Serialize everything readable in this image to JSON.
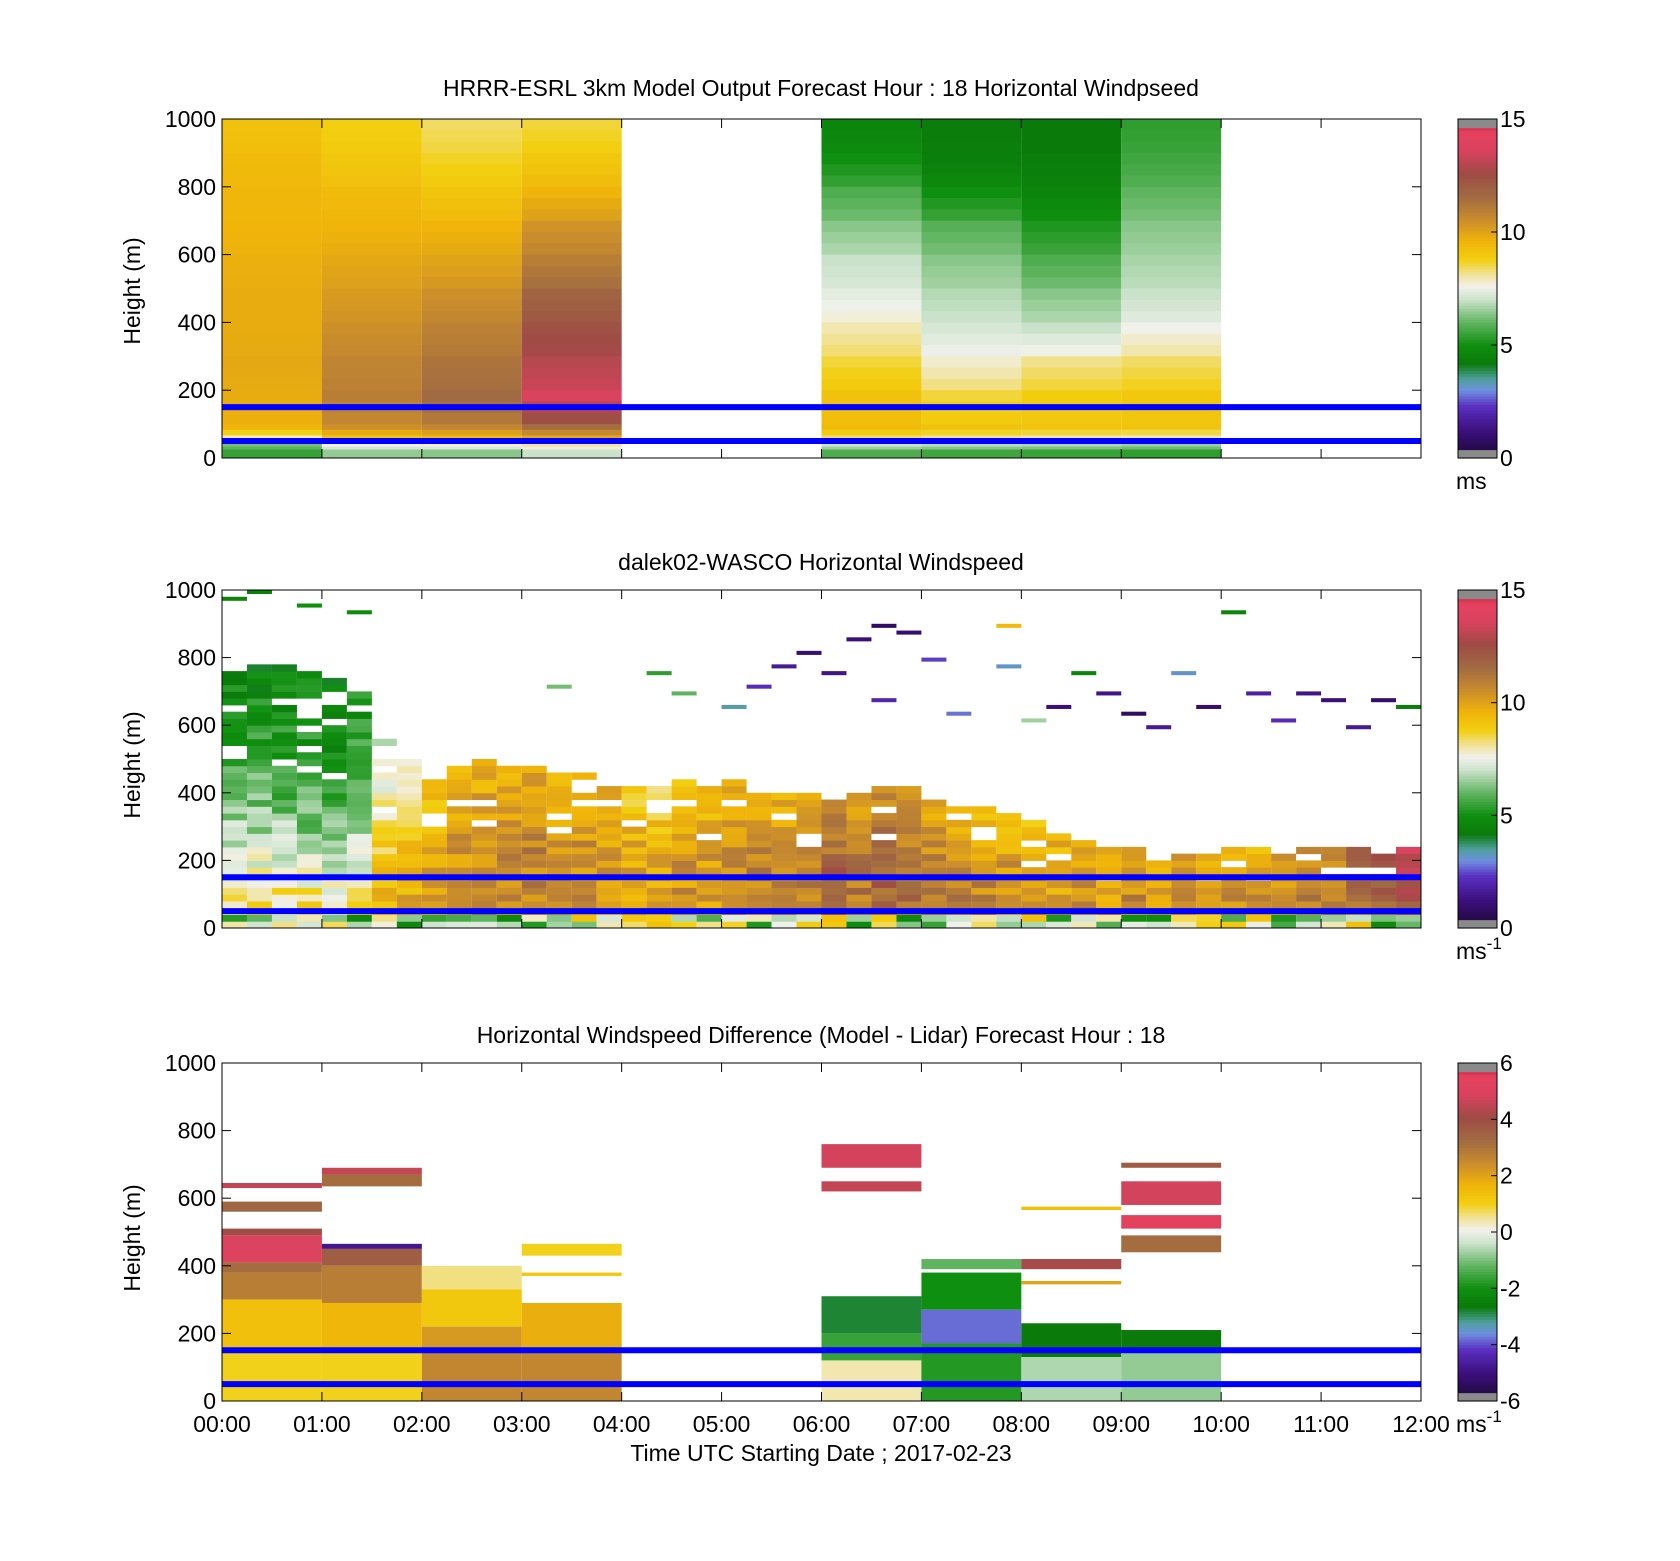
{
  "colors": {
    "overlay_line": "#0000ff",
    "background": "#ffffff",
    "axis": "#000000"
  },
  "shared_x": {
    "label": "Time UTC  Starting Date ; 2017-02-23",
    "ticks": [
      "00:00",
      "01:00",
      "02:00",
      "03:00",
      "04:00",
      "05:00",
      "06:00",
      "07:00",
      "08:00",
      "09:00",
      "10:00",
      "11:00",
      "12:00"
    ],
    "range_hours": [
      0,
      12
    ]
  },
  "chart_data": [
    {
      "type": "heatmap",
      "title": "HRRR-ESRL 3km Model Output   Forecast Hour : 18 Horizontal Windpseed",
      "ylabel": "Height (m)",
      "ylim": [
        0,
        1000
      ],
      "yticks": [
        "0",
        "200",
        "400",
        "600",
        "800",
        "1000"
      ],
      "colorbar": {
        "min": 0,
        "max": 15,
        "ticks": [
          "0",
          "5",
          "10",
          "15"
        ],
        "unit": "ms",
        "unit_sup": ""
      },
      "overlay_lines_m": [
        150,
        50
      ],
      "rows_m": [
        1000,
        900,
        800,
        700,
        600,
        500,
        400,
        300,
        200,
        100,
        50,
        25
      ],
      "columns": [
        {
          "start_h": 0,
          "end_h": 1,
          "values": [
            9.2,
            9.4,
            9.5,
            9.6,
            9.7,
            9.8,
            9.8,
            9.9,
            9.8,
            9.6,
            6.5,
            5.5
          ]
        },
        {
          "start_h": 1,
          "end_h": 2,
          "values": [
            8.8,
            9.0,
            9.4,
            9.6,
            9.9,
            10.2,
            10.5,
            10.8,
            11.0,
            10.5,
            8.0,
            6.5
          ]
        },
        {
          "start_h": 2,
          "end_h": 3,
          "values": [
            8.4,
            8.7,
            9.1,
            9.6,
            10.0,
            10.5,
            10.9,
            11.3,
            11.6,
            10.8,
            8.2,
            6.4
          ]
        },
        {
          "start_h": 3,
          "end_h": 4,
          "values": [
            8.6,
            9.0,
            9.6,
            10.4,
            11.0,
            11.8,
            12.4,
            13.0,
            13.6,
            11.5,
            8.5,
            7.0
          ]
        },
        {
          "start_h": 6,
          "end_h": 7,
          "values": [
            4.6,
            5.0,
            5.8,
            6.4,
            7.0,
            7.4,
            8.0,
            8.6,
            9.2,
            9.4,
            7.5,
            5.8
          ]
        },
        {
          "start_h": 7,
          "end_h": 8,
          "values": [
            4.3,
            4.4,
            5.0,
            5.9,
            6.4,
            6.8,
            7.2,
            7.8,
            8.6,
            9.2,
            7.3,
            5.6
          ]
        },
        {
          "start_h": 8,
          "end_h": 9,
          "values": [
            4.2,
            4.3,
            4.6,
            5.2,
            5.8,
            6.4,
            7.0,
            8.2,
            8.9,
            9.1,
            7.2,
            5.5
          ]
        },
        {
          "start_h": 9,
          "end_h": 10,
          "values": [
            5.4,
            5.6,
            6.0,
            6.4,
            6.7,
            7.0,
            7.6,
            8.4,
            9.0,
            9.1,
            7.0,
            5.4
          ]
        }
      ]
    },
    {
      "type": "heatmap",
      "title": "dalek02-WASCO  Horizontal Windspeed",
      "ylabel": "Height (m)",
      "ylim": [
        0,
        1000
      ],
      "yticks": [
        "0",
        "200",
        "400",
        "600",
        "800",
        "1000"
      ],
      "colorbar": {
        "min": 0,
        "max": 15,
        "ticks": [
          "0",
          "5",
          "10",
          "15"
        ],
        "unit": "ms",
        "unit_sup": "-1"
      },
      "overlay_lines_m": [
        150,
        50
      ],
      "row_step_m": 20,
      "column_step_h": 0.25,
      "profiles": [
        {
          "start_h": 0.0,
          "top_m": 820,
          "low": 8.6,
          "mid": 6.0,
          "top": 4.5
        },
        {
          "start_h": 0.25,
          "top_m": 800,
          "low": 8.8,
          "mid": 6.2,
          "top": 4.6
        },
        {
          "start_h": 0.5,
          "top_m": 780,
          "low": 9.0,
          "mid": 6.0,
          "top": 4.8
        },
        {
          "start_h": 0.75,
          "top_m": 760,
          "low": 9.2,
          "mid": 5.8,
          "top": 5.0
        },
        {
          "start_h": 1.0,
          "top_m": 740,
          "low": 9.0,
          "mid": 5.6,
          "top": 4.8
        },
        {
          "start_h": 1.25,
          "top_m": 700,
          "low": 9.2,
          "mid": 6.4,
          "top": 5.2
        },
        {
          "start_h": 1.5,
          "top_m": 560,
          "low": 9.6,
          "mid": 8.6,
          "top": 7.0
        },
        {
          "start_h": 1.75,
          "top_m": 500,
          "low": 9.8,
          "mid": 9.4,
          "top": 8.0
        },
        {
          "start_h": 2.0,
          "top_m": 460,
          "low": 10.2,
          "mid": 10.0,
          "top": 9.2
        },
        {
          "start_h": 2.25,
          "top_m": 480,
          "low": 10.6,
          "mid": 10.4,
          "top": 9.6
        },
        {
          "start_h": 2.5,
          "top_m": 500,
          "low": 10.8,
          "mid": 10.6,
          "top": 9.8
        },
        {
          "start_h": 2.75,
          "top_m": 480,
          "low": 10.6,
          "mid": 10.6,
          "top": 9.8
        },
        {
          "start_h": 3.0,
          "top_m": 480,
          "low": 10.8,
          "mid": 10.8,
          "top": 10.0
        },
        {
          "start_h": 3.25,
          "top_m": 470,
          "low": 10.8,
          "mid": 10.6,
          "top": 9.4
        },
        {
          "start_h": 3.5,
          "top_m": 460,
          "low": 10.6,
          "mid": 10.6,
          "top": 9.6
        },
        {
          "start_h": 3.75,
          "top_m": 440,
          "low": 10.4,
          "mid": 10.4,
          "top": 9.8
        },
        {
          "start_h": 4.0,
          "top_m": 440,
          "low": 10.2,
          "mid": 10.0,
          "top": 9.0
        },
        {
          "start_h": 4.25,
          "top_m": 430,
          "low": 10.0,
          "mid": 10.0,
          "top": 8.6
        },
        {
          "start_h": 4.5,
          "top_m": 440,
          "low": 10.4,
          "mid": 10.4,
          "top": 9.6
        },
        {
          "start_h": 4.75,
          "top_m": 420,
          "low": 10.2,
          "mid": 10.2,
          "top": 9.4
        },
        {
          "start_h": 5.0,
          "top_m": 440,
          "low": 10.6,
          "mid": 10.6,
          "top": 9.6
        },
        {
          "start_h": 5.25,
          "top_m": 420,
          "low": 10.8,
          "mid": 11.0,
          "top": 10.0
        },
        {
          "start_h": 5.5,
          "top_m": 400,
          "low": 10.6,
          "mid": 10.8,
          "top": 9.8
        },
        {
          "start_h": 5.75,
          "top_m": 400,
          "low": 10.8,
          "mid": 11.0,
          "top": 10.2
        },
        {
          "start_h": 6.0,
          "top_m": 380,
          "low": 11.4,
          "mid": 11.8,
          "top": 10.6
        },
        {
          "start_h": 6.25,
          "top_m": 400,
          "low": 11.0,
          "mid": 11.2,
          "top": 10.2
        },
        {
          "start_h": 6.5,
          "top_m": 420,
          "low": 11.6,
          "mid": 11.8,
          "top": 10.8
        },
        {
          "start_h": 6.75,
          "top_m": 420,
          "low": 11.2,
          "mid": 11.4,
          "top": 10.4
        },
        {
          "start_h": 7.0,
          "top_m": 380,
          "low": 11.0,
          "mid": 11.0,
          "top": 10.0
        },
        {
          "start_h": 7.25,
          "top_m": 360,
          "low": 11.2,
          "mid": 10.8,
          "top": 9.6
        },
        {
          "start_h": 7.5,
          "top_m": 360,
          "low": 11.0,
          "mid": 10.6,
          "top": 9.4
        },
        {
          "start_h": 7.75,
          "top_m": 340,
          "low": 10.8,
          "mid": 10.4,
          "top": 9.2
        },
        {
          "start_h": 8.0,
          "top_m": 320,
          "low": 10.6,
          "mid": 10.0,
          "top": 9.4
        },
        {
          "start_h": 8.25,
          "top_m": 280,
          "low": 10.4,
          "mid": 10.0,
          "top": 9.6
        },
        {
          "start_h": 8.5,
          "top_m": 260,
          "low": 10.6,
          "mid": 10.4,
          "top": 9.8
        },
        {
          "start_h": 8.75,
          "top_m": 240,
          "low": 10.4,
          "mid": 10.2,
          "top": 9.6
        },
        {
          "start_h": 9.0,
          "top_m": 240,
          "low": 10.6,
          "mid": 10.6,
          "top": 10.0
        },
        {
          "start_h": 9.25,
          "top_m": 230,
          "low": 10.2,
          "mid": 10.2,
          "top": 9.6
        },
        {
          "start_h": 9.5,
          "top_m": 230,
          "low": 10.6,
          "mid": 10.8,
          "top": 10.2
        },
        {
          "start_h": 9.75,
          "top_m": 240,
          "low": 10.4,
          "mid": 10.2,
          "top": 9.6
        },
        {
          "start_h": 10.0,
          "top_m": 240,
          "low": 10.8,
          "mid": 10.6,
          "top": 10.0
        },
        {
          "start_h": 10.25,
          "top_m": 240,
          "low": 10.6,
          "mid": 10.4,
          "top": 9.8
        },
        {
          "start_h": 10.5,
          "top_m": 240,
          "low": 10.8,
          "mid": 10.6,
          "top": 10.0
        },
        {
          "start_h": 10.75,
          "top_m": 240,
          "low": 11.0,
          "mid": 11.0,
          "top": 10.4
        },
        {
          "start_h": 11.0,
          "top_m": 240,
          "low": 11.2,
          "mid": 11.2,
          "top": 10.6
        },
        {
          "start_h": 11.25,
          "top_m": 240,
          "low": 11.4,
          "mid": 11.6,
          "top": 11.6
        },
        {
          "start_h": 11.5,
          "top_m": 240,
          "low": 11.6,
          "mid": 12.0,
          "top": 12.6
        },
        {
          "start_h": 11.75,
          "top_m": 240,
          "low": 11.8,
          "mid": 12.6,
          "top": 13.4
        }
      ],
      "scattered_upper_cells": [
        {
          "h": 0.0,
          "m": 980,
          "v": 4.6
        },
        {
          "h": 0.25,
          "m": 1000,
          "v": 4.4
        },
        {
          "h": 0.75,
          "m": 960,
          "v": 5.0
        },
        {
          "h": 1.25,
          "m": 940,
          "v": 4.8
        },
        {
          "h": 3.25,
          "m": 720,
          "v": 6.2
        },
        {
          "h": 4.25,
          "m": 760,
          "v": 5.4
        },
        {
          "h": 4.5,
          "m": 700,
          "v": 6.0
        },
        {
          "h": 5.0,
          "m": 660,
          "v": 3.4
        },
        {
          "h": 5.25,
          "m": 720,
          "v": 2.2
        },
        {
          "h": 5.5,
          "m": 780,
          "v": 1.6
        },
        {
          "h": 5.75,
          "m": 820,
          "v": 1.0
        },
        {
          "h": 6.0,
          "m": 760,
          "v": 1.4
        },
        {
          "h": 6.25,
          "m": 860,
          "v": 1.2
        },
        {
          "h": 6.5,
          "m": 900,
          "v": 0.8
        },
        {
          "h": 6.75,
          "m": 880,
          "v": 1.0
        },
        {
          "h": 6.5,
          "m": 680,
          "v": 2.0
        },
        {
          "h": 7.0,
          "m": 800,
          "v": 2.4
        },
        {
          "h": 7.25,
          "m": 640,
          "v": 2.8
        },
        {
          "h": 7.75,
          "m": 900,
          "v": 9.4
        },
        {
          "h": 7.75,
          "m": 780,
          "v": 3.2
        },
        {
          "h": 8.0,
          "m": 620,
          "v": 6.6
        },
        {
          "h": 8.25,
          "m": 660,
          "v": 1.2
        },
        {
          "h": 8.5,
          "m": 760,
          "v": 4.6
        },
        {
          "h": 8.75,
          "m": 700,
          "v": 1.4
        },
        {
          "h": 9.0,
          "m": 640,
          "v": 0.8
        },
        {
          "h": 9.25,
          "m": 600,
          "v": 1.6
        },
        {
          "h": 9.5,
          "m": 760,
          "v": 3.2
        },
        {
          "h": 9.75,
          "m": 660,
          "v": 1.0
        },
        {
          "h": 10.0,
          "m": 940,
          "v": 4.6
        },
        {
          "h": 10.25,
          "m": 700,
          "v": 1.8
        },
        {
          "h": 10.5,
          "m": 620,
          "v": 2.2
        },
        {
          "h": 10.75,
          "m": 700,
          "v": 1.4
        },
        {
          "h": 11.0,
          "m": 680,
          "v": 1.2
        },
        {
          "h": 11.25,
          "m": 600,
          "v": 1.6
        },
        {
          "h": 11.5,
          "m": 680,
          "v": 1.0
        },
        {
          "h": 11.75,
          "m": 660,
          "v": 4.4
        }
      ]
    },
    {
      "type": "heatmap",
      "title": "Horizontal Windspeed Difference (Model - Lidar) Forecast Hour : 18",
      "ylabel": "Height (m)",
      "ylim": [
        0,
        1000
      ],
      "yticks": [
        "0",
        "200",
        "400",
        "600",
        "800",
        "1000"
      ],
      "colorbar": {
        "min": -6,
        "max": 6,
        "ticks": [
          "-6",
          "-4",
          "-2",
          "0",
          "2",
          "4",
          "6"
        ],
        "unit": "ms",
        "unit_sup": "-1"
      },
      "overlay_lines_m": [
        150,
        50
      ],
      "blocks": [
        {
          "start_h": 0,
          "end_h": 1,
          "cells": [
            {
              "lo": 630,
              "hi": 645,
              "v": 4.6
            },
            {
              "lo": 560,
              "hi": 590,
              "v": 3.4
            },
            {
              "lo": 490,
              "hi": 510,
              "v": 4.0
            },
            {
              "lo": 410,
              "hi": 490,
              "v": 5.0
            },
            {
              "lo": 380,
              "hi": 410,
              "v": 3.2
            },
            {
              "lo": 300,
              "hi": 380,
              "v": 2.8
            },
            {
              "lo": 150,
              "hi": 300,
              "v": 1.4
            },
            {
              "lo": 0,
              "hi": 150,
              "v": 1.0
            }
          ]
        },
        {
          "start_h": 1,
          "end_h": 2,
          "cells": [
            {
              "lo": 670,
              "hi": 690,
              "v": 4.6
            },
            {
              "lo": 635,
              "hi": 670,
              "v": 3.2
            },
            {
              "lo": 450,
              "hi": 465,
              "v": -4.8
            },
            {
              "lo": 400,
              "hi": 450,
              "v": 3.6
            },
            {
              "lo": 290,
              "hi": 400,
              "v": 2.8
            },
            {
              "lo": 150,
              "hi": 290,
              "v": 1.6
            },
            {
              "lo": 0,
              "hi": 150,
              "v": 1.0
            }
          ]
        },
        {
          "start_h": 2,
          "end_h": 3,
          "cells": [
            {
              "lo": 330,
              "hi": 400,
              "v": 0.6
            },
            {
              "lo": 220,
              "hi": 330,
              "v": 1.2
            },
            {
              "lo": 150,
              "hi": 220,
              "v": 2.2
            },
            {
              "lo": 0,
              "hi": 150,
              "v": 2.6
            }
          ]
        },
        {
          "start_h": 3,
          "end_h": 4,
          "cells": [
            {
              "lo": 430,
              "hi": 465,
              "v": 1.0
            },
            {
              "lo": 370,
              "hi": 380,
              "v": 1.2
            },
            {
              "lo": 150,
              "hi": 290,
              "v": 1.8
            },
            {
              "lo": 0,
              "hi": 150,
              "v": 2.6
            }
          ]
        },
        {
          "start_h": 6,
          "end_h": 7,
          "cells": [
            {
              "lo": 690,
              "hi": 760,
              "v": 4.8
            },
            {
              "lo": 620,
              "hi": 650,
              "v": 4.6
            },
            {
              "lo": 200,
              "hi": 310,
              "v": -2.8
            },
            {
              "lo": 120,
              "hi": 200,
              "v": -1.6
            },
            {
              "lo": 0,
              "hi": 120,
              "v": 0.4
            }
          ]
        },
        {
          "start_h": 7,
          "end_h": 8,
          "cells": [
            {
              "lo": 390,
              "hi": 420,
              "v": -1.2
            },
            {
              "lo": 270,
              "hi": 380,
              "v": -2.0
            },
            {
              "lo": 170,
              "hi": 270,
              "v": -3.8
            },
            {
              "lo": 0,
              "hi": 170,
              "v": -1.8
            }
          ]
        },
        {
          "start_h": 8,
          "end_h": 9,
          "cells": [
            {
              "lo": 565,
              "hi": 575,
              "v": 1.4
            },
            {
              "lo": 390,
              "hi": 420,
              "v": 4.2
            },
            {
              "lo": 345,
              "hi": 355,
              "v": 2.0
            },
            {
              "lo": 130,
              "hi": 230,
              "v": -2.6
            },
            {
              "lo": 0,
              "hi": 130,
              "v": -0.6
            }
          ]
        },
        {
          "start_h": 9,
          "end_h": 10,
          "cells": [
            {
              "lo": 690,
              "hi": 705,
              "v": 3.6
            },
            {
              "lo": 580,
              "hi": 650,
              "v": 4.8
            },
            {
              "lo": 510,
              "hi": 550,
              "v": 5.4
            },
            {
              "lo": 440,
              "hi": 490,
              "v": 3.2
            },
            {
              "lo": 150,
              "hi": 210,
              "v": -2.6
            },
            {
              "lo": 0,
              "hi": 150,
              "v": -0.8
            }
          ]
        }
      ]
    }
  ]
}
